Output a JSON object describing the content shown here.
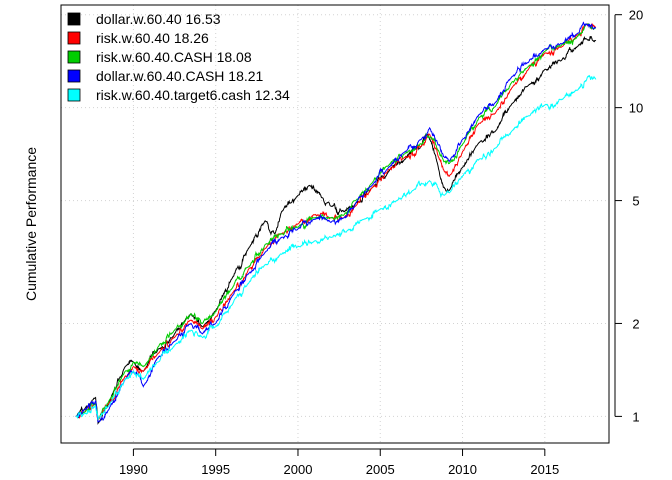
{
  "chart_data": {
    "type": "line",
    "title": "",
    "xlabel": "",
    "ylabel": "Cumulative Performance",
    "y_scale": "log",
    "xlim": [
      1985.6,
      2018.9
    ],
    "ylim": [
      0.82,
      21.5
    ],
    "x_ticks": [
      1990,
      1995,
      2000,
      2005,
      2010,
      2015
    ],
    "x_tick_labels": [
      "1990",
      "1995",
      "2000",
      "2005",
      "2010",
      "2015"
    ],
    "y_ticks": [
      1,
      2,
      5,
      10,
      20
    ],
    "y_tick_labels": [
      "1",
      "2",
      "5",
      "10",
      "20"
    ],
    "y_axis_side": "right",
    "grid": true,
    "legend_position": "top-left",
    "series": [
      {
        "name": "dollar.w.60.40 16.53",
        "color": "#000000",
        "x": [
          1986.5,
          1987.0,
          1987.7,
          1987.85,
          1988.5,
          1989.5,
          1990.0,
          1990.6,
          1991.5,
          1992.5,
          1993.5,
          1994.2,
          1995.0,
          1996.0,
          1997.0,
          1998.0,
          1998.6,
          1999.0,
          2000.0,
          2000.7,
          2001.5,
          2002.0,
          2002.8,
          2003.5,
          2004.5,
          2005.5,
          2006.5,
          2007.5,
          2007.9,
          2008.5,
          2008.9,
          2009.2,
          2010.0,
          2011.0,
          2012.0,
          2013.0,
          2014.0,
          2015.0,
          2016.0,
          2017.0,
          2017.5,
          2018.1
        ],
        "values": [
          1.0,
          1.05,
          1.15,
          0.95,
          1.1,
          1.45,
          1.5,
          1.4,
          1.65,
          1.85,
          2.15,
          1.95,
          2.2,
          2.8,
          3.5,
          4.3,
          3.9,
          4.6,
          5.2,
          5.6,
          5.1,
          4.8,
          4.6,
          4.9,
          5.5,
          6.2,
          6.8,
          7.5,
          8.2,
          6.5,
          5.5,
          5.4,
          6.4,
          7.7,
          8.4,
          10.3,
          11.8,
          13.3,
          14.2,
          15.8,
          16.7,
          16.53
        ]
      },
      {
        "name": "risk.w.60.40 18.26",
        "color": "#ff0000",
        "x": [
          1986.5,
          1987.0,
          1987.7,
          1987.85,
          1988.5,
          1989.5,
          1990.0,
          1990.6,
          1991.5,
          1992.5,
          1993.5,
          1994.2,
          1995.0,
          1996.0,
          1997.0,
          1998.0,
          1999.0,
          2000.0,
          2001.0,
          2002.0,
          2002.8,
          2003.5,
          2004.5,
          2005.5,
          2006.5,
          2007.5,
          2008.0,
          2008.5,
          2008.9,
          2009.2,
          2010.0,
          2011.0,
          2012.0,
          2013.0,
          2014.0,
          2015.0,
          2016.0,
          2017.0,
          2017.5,
          2018.1
        ],
        "values": [
          1.0,
          1.03,
          1.1,
          0.98,
          1.1,
          1.35,
          1.45,
          1.4,
          1.6,
          1.8,
          2.05,
          1.92,
          2.1,
          2.5,
          3.0,
          3.5,
          3.9,
          4.2,
          4.5,
          4.4,
          4.4,
          4.8,
          5.5,
          6.3,
          6.9,
          7.5,
          8.2,
          7.0,
          6.2,
          6.0,
          7.2,
          8.9,
          9.6,
          11.6,
          13.3,
          15.0,
          15.7,
          17.2,
          18.6,
          18.26
        ]
      },
      {
        "name": "risk.w.60.40.CASH 18.08",
        "color": "#00cd00",
        "x": [
          1986.5,
          1987.0,
          1987.7,
          1987.85,
          1988.5,
          1989.5,
          1990.0,
          1990.6,
          1991.5,
          1992.5,
          1993.5,
          1994.2,
          1995.0,
          1996.0,
          1997.0,
          1998.0,
          1999.0,
          2000.0,
          2001.0,
          2002.0,
          2002.8,
          2003.5,
          2004.5,
          2005.5,
          2006.5,
          2007.5,
          2008.0,
          2008.5,
          2008.9,
          2009.2,
          2010.0,
          2011.0,
          2012.0,
          2013.0,
          2014.0,
          2015.0,
          2016.0,
          2017.0,
          2017.5,
          2018.1
        ],
        "values": [
          1.0,
          1.03,
          1.1,
          0.98,
          1.12,
          1.4,
          1.5,
          1.45,
          1.68,
          1.9,
          2.15,
          2.0,
          2.18,
          2.6,
          3.05,
          3.6,
          3.9,
          4.1,
          4.4,
          4.4,
          4.5,
          5.0,
          5.7,
          6.5,
          7.1,
          7.6,
          8.0,
          7.3,
          6.7,
          6.6,
          7.6,
          9.3,
          10.1,
          12.1,
          13.6,
          15.2,
          15.9,
          17.0,
          18.6,
          18.08
        ]
      },
      {
        "name": "dollar.w.60.40.CASH 18.21",
        "color": "#0000ff",
        "x": [
          1986.5,
          1987.0,
          1987.7,
          1987.85,
          1988.5,
          1989.5,
          1990.0,
          1990.6,
          1991.5,
          1992.5,
          1993.5,
          1994.2,
          1995.0,
          1996.0,
          1997.0,
          1998.0,
          1999.0,
          2000.0,
          2001.0,
          2002.0,
          2002.8,
          2003.5,
          2004.5,
          2005.5,
          2006.5,
          2007.5,
          2008.0,
          2008.5,
          2008.9,
          2009.2,
          2010.0,
          2011.0,
          2012.0,
          2013.0,
          2014.0,
          2015.0,
          2016.0,
          2017.0,
          2017.5,
          2018.1
        ],
        "values": [
          1.0,
          1.05,
          1.12,
          0.96,
          1.05,
          1.32,
          1.4,
          1.25,
          1.55,
          1.75,
          2.0,
          1.85,
          2.0,
          2.45,
          2.9,
          3.4,
          3.8,
          4.05,
          4.35,
          4.25,
          4.4,
          4.9,
          5.6,
          6.4,
          7.2,
          7.9,
          8.6,
          7.6,
          6.9,
          6.7,
          7.9,
          9.5,
          10.4,
          12.6,
          14.0,
          15.5,
          16.1,
          17.4,
          18.7,
          18.21
        ]
      },
      {
        "name": "risk.w.60.40.target6.cash 12.34",
        "color": "#00ffff",
        "x": [
          1986.5,
          1987.0,
          1987.7,
          1987.85,
          1988.5,
          1989.5,
          1990.0,
          1990.6,
          1991.5,
          1992.5,
          1993.5,
          1994.2,
          1995.0,
          1996.0,
          1997.0,
          1998.0,
          1999.0,
          2000.0,
          2001.0,
          2002.0,
          2003.0,
          2004.0,
          2005.0,
          2006.0,
          2007.0,
          2008.0,
          2008.5,
          2008.9,
          2009.2,
          2010.0,
          2011.0,
          2012.0,
          2013.0,
          2014.0,
          2015.0,
          2016.0,
          2017.0,
          2017.6,
          2018.1
        ],
        "values": [
          1.0,
          1.02,
          1.08,
          0.98,
          1.08,
          1.32,
          1.4,
          1.32,
          1.5,
          1.7,
          1.9,
          1.8,
          1.95,
          2.3,
          2.7,
          3.1,
          3.35,
          3.55,
          3.7,
          3.8,
          4.0,
          4.35,
          4.7,
          5.0,
          5.4,
          5.8,
          5.5,
          5.2,
          5.3,
          6.0,
          6.8,
          7.4,
          8.4,
          9.4,
          10.2,
          10.6,
          11.4,
          12.6,
          12.34
        ]
      }
    ]
  }
}
